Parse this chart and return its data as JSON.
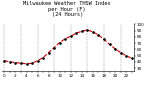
{
  "hours": [
    0,
    1,
    2,
    3,
    4,
    5,
    6,
    7,
    8,
    9,
    10,
    11,
    12,
    13,
    14,
    15,
    16,
    17,
    18,
    19,
    20,
    21,
    22,
    23
  ],
  "values": [
    42,
    40,
    39,
    38,
    37,
    38,
    42,
    47,
    55,
    63,
    71,
    77,
    81,
    86,
    89,
    91,
    88,
    83,
    76,
    68,
    61,
    55,
    50,
    46
  ],
  "line_color": "#cc0000",
  "marker_color": "#000000",
  "bg_color": "#ffffff",
  "grid_color": "#999999",
  "ylim": [
    25,
    100
  ],
  "xlim": [
    -0.5,
    23.5
  ],
  "title": "Milwaukee Weather THSW Index\nper Hour (F)\n(24 Hours)",
  "title_fontsize": 3.8,
  "tick_fontsize": 3.0,
  "line_width": 0.8,
  "marker_size": 1.8,
  "linestyle": "--"
}
